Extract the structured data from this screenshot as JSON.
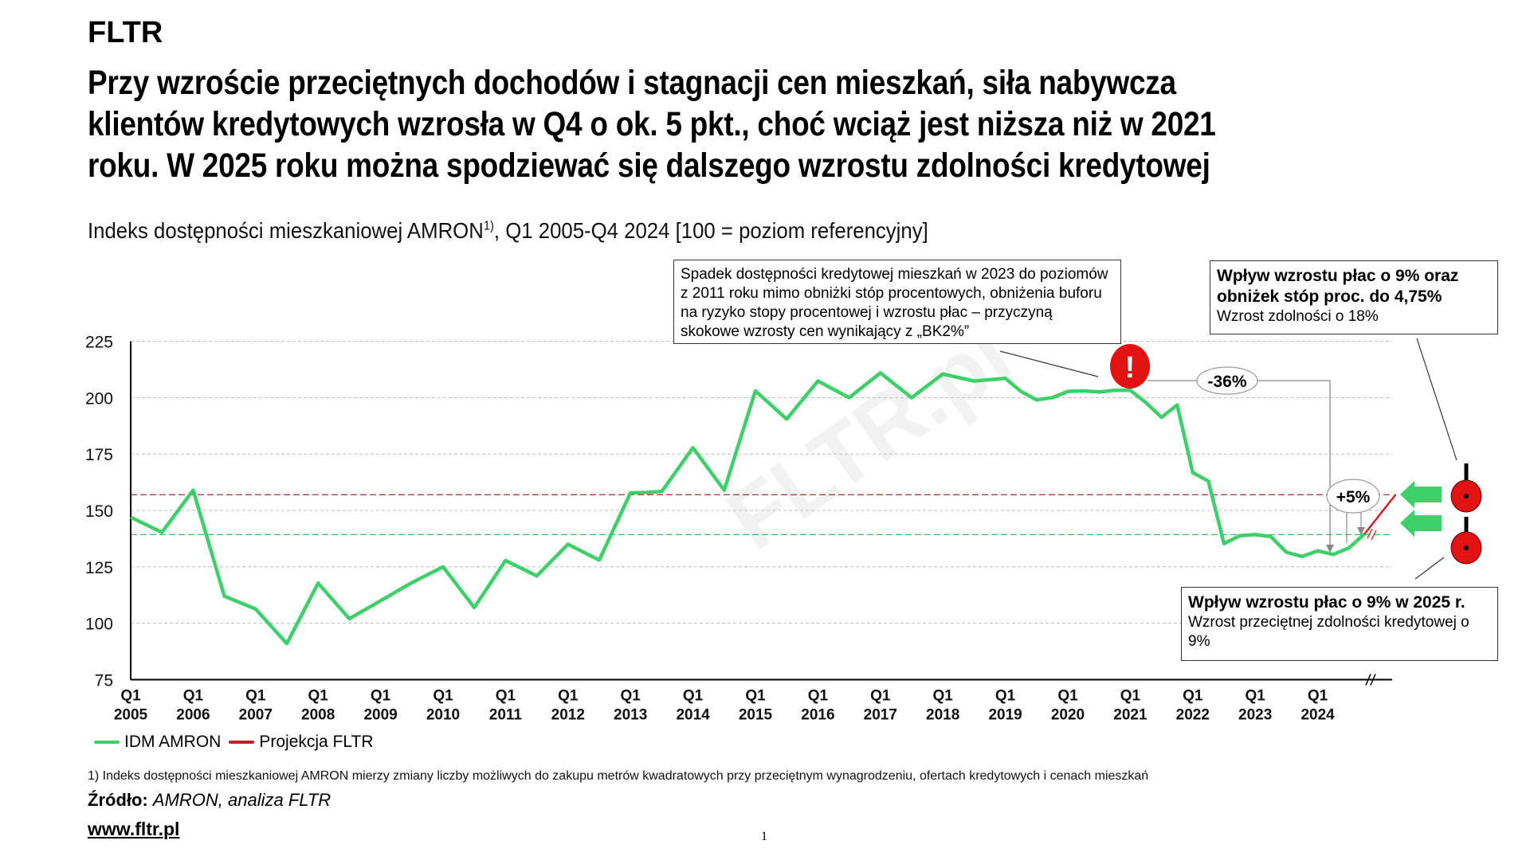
{
  "brand": "FLTR",
  "title_lines": [
    "Przy wzroście przeciętnych dochodów i stagnacji cen mieszkań, siła nabywcza",
    "klientów kredytowych wzrosła w Q4 o ok. 5 pkt., choć wciąż jest niższa niż w 2021",
    "roku. W 2025 roku można spodziewać się dalszego wzrostu zdolności kredytowej"
  ],
  "subtitle": {
    "main": "Indeks dostępności mieszkaniowej AMRON",
    "sup": "1)",
    "rest": ", Q1 2005-Q4 2024 [100 = poziom referencyjny]"
  },
  "annotations": {
    "bk2": "Spadek dostępności kredytowej mieszkań w 2023 do poziomów z 2011 roku mimo obniżki stóp procentowych, obniżenia buforu na ryzyko stopy procentowej i wzrostu płac – przyczyną skokowe wzrosty cen wynikający z „BK2%”",
    "rates_title": "Wpływ wzrostu płac o 9% oraz obniżek stóp proc. do 4,75%",
    "rates_text": "Wzrost zdolności o 18%",
    "wages_title": "Wpływ wzrostu płac o 9% w 2025 r.",
    "wages_text": "Wzrost przeciętnej zdolności kredytowej o 9%",
    "drop_label": "-36%",
    "rise_label": "+5%",
    "alert_symbol": "!"
  },
  "legend": [
    "IDM AMRON",
    "Projekcja FLTR"
  ],
  "footnote": "1) Indeks dostępności mieszkaniowej AMRON mierzy zmiany liczby możliwych do zakupu metrów kwadratowych przy przeciętnym wynagrodzeniu, ofertach kredytowych i cenach mieszkań",
  "source": {
    "label": "Źródło:",
    "value": "AMRON, analiza FLTR"
  },
  "website": "www.fltr.pl",
  "page_number": "1",
  "watermark": "FLTR.pl",
  "colors": {
    "series": "#3dd068",
    "projection": "#d42020",
    "ref_red": "#a03030",
    "ref_green": "#3dbb60",
    "alert": "#e31212"
  },
  "chart_data": {
    "type": "line",
    "title": "Indeks dostępności mieszkaniowej AMRON, Q1 2005-Q4 2024",
    "ylim": [
      75,
      225
    ],
    "yticks": [
      "75",
      "100",
      "125",
      "150",
      "175",
      "200",
      "225"
    ],
    "xticks": [
      [
        "Q1",
        "2005"
      ],
      [
        "Q1",
        "2006"
      ],
      [
        "Q1",
        "2007"
      ],
      [
        "Q1",
        "2008"
      ],
      [
        "Q1",
        "2009"
      ],
      [
        "Q1",
        "2010"
      ],
      [
        "Q1",
        "2011"
      ],
      [
        "Q1",
        "2012"
      ],
      [
        "Q1",
        "2013"
      ],
      [
        "Q1",
        "2014"
      ],
      [
        "Q1",
        "2015"
      ],
      [
        "Q1",
        "2016"
      ],
      [
        "Q1",
        "2017"
      ],
      [
        "Q1",
        "2018"
      ],
      [
        "Q1",
        "2019"
      ],
      [
        "Q1",
        "2020"
      ],
      [
        "Q1",
        "2021"
      ],
      [
        "Q1",
        "2022"
      ],
      [
        "Q1",
        "2023"
      ],
      [
        "Q1",
        "2024"
      ]
    ],
    "grid": true,
    "legend_position": "bottom-left",
    "series": [
      {
        "name": "IDM AMRON",
        "points": [
          [
            "2005Q1",
            147
          ],
          [
            "2005Q3",
            140.3
          ],
          [
            "2006Q1",
            159
          ],
          [
            "2006Q3",
            112
          ],
          [
            "2007Q1",
            106.3
          ],
          [
            "2007Q3",
            91
          ],
          [
            "2008Q1",
            117.8
          ],
          [
            "2008Q3",
            102
          ],
          [
            "2009Q1",
            110
          ],
          [
            "2009Q3",
            118
          ],
          [
            "2010Q1",
            125
          ],
          [
            "2010Q3",
            107
          ],
          [
            "2011Q1",
            127.8
          ],
          [
            "2011Q3",
            121
          ],
          [
            "2012Q1",
            135
          ],
          [
            "2012Q3",
            128
          ],
          [
            "2013Q1",
            157.8
          ],
          [
            "2013Q2",
            158
          ],
          [
            "2013Q3",
            158.4
          ],
          [
            "2014Q1",
            177.8
          ],
          [
            "2014Q3",
            159
          ],
          [
            "2015Q1",
            203
          ],
          [
            "2015Q3",
            190.5
          ],
          [
            "2016Q1",
            207.4
          ],
          [
            "2016Q3",
            200
          ],
          [
            "2017Q1",
            211
          ],
          [
            "2017Q3",
            200
          ],
          [
            "2018Q1",
            210.5
          ],
          [
            "2018Q3",
            207.4
          ],
          [
            "2019Q1",
            208.6
          ],
          [
            "2019Q2",
            202.8
          ],
          [
            "2019Q3",
            199
          ],
          [
            "2019Q4",
            200
          ],
          [
            "2020Q1",
            202.8
          ],
          [
            "2020Q2",
            203
          ],
          [
            "2020Q3",
            202.5
          ],
          [
            "2020Q4",
            203.3
          ],
          [
            "2021Q1",
            203.3
          ],
          [
            "2021Q2",
            197.8
          ],
          [
            "2021Q3",
            191.3
          ],
          [
            "2021Q4",
            196.8
          ],
          [
            "2022Q1",
            166.8
          ],
          [
            "2022Q2",
            163
          ],
          [
            "2022Q3",
            135.3
          ],
          [
            "2022Q4",
            138.8
          ],
          [
            "2023Q1",
            139.3
          ],
          [
            "2023Q2",
            138.4
          ],
          [
            "2023Q3",
            131.5
          ],
          [
            "2023Q4",
            129.6
          ],
          [
            "2024Q1",
            132.1
          ],
          [
            "2024Q2",
            130.5
          ],
          [
            "2024Q3",
            133.4
          ],
          [
            "2024Q4",
            139.6
          ]
        ]
      },
      {
        "name": "Projekcja FLTR",
        "points": [
          [
            "2024Q4",
            139.6
          ],
          [
            "2025Q2",
            157.1
          ]
        ]
      }
    ],
    "reference_lines": [
      {
        "name": "wage-and-rates-scenario",
        "value": 157
      },
      {
        "name": "wage-scenario",
        "value": 139.3
      }
    ]
  }
}
